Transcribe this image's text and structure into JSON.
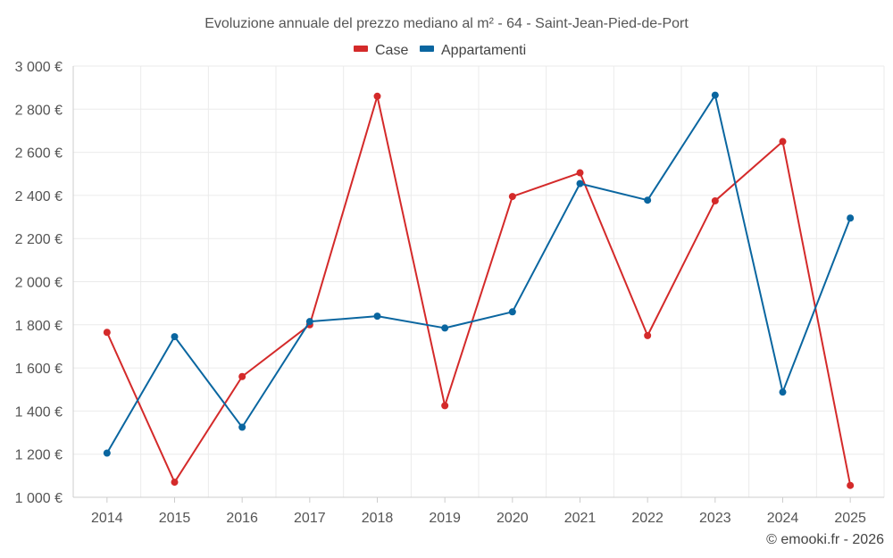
{
  "chart_data": {
    "type": "line",
    "title": "Evoluzione annuale del prezzo mediano al m² - 64 - Saint-Jean-Pied-de-Port",
    "categories": [
      "2014",
      "2015",
      "2016",
      "2017",
      "2018",
      "2019",
      "2020",
      "2021",
      "2022",
      "2023",
      "2024",
      "2025"
    ],
    "series": [
      {
        "name": "Case",
        "color": "#d42a2a",
        "values": [
          1765,
          1070,
          1560,
          1800,
          2860,
          1425,
          2395,
          2505,
          1750,
          2375,
          2650,
          1055
        ]
      },
      {
        "name": "Appartamenti",
        "color": "#0a66a0",
        "values": [
          1205,
          1745,
          1325,
          1815,
          1840,
          1785,
          1860,
          2455,
          2378,
          2865,
          1488,
          2295
        ]
      }
    ],
    "ylim": [
      1000,
      3000
    ],
    "yticks": [
      1000,
      1200,
      1400,
      1600,
      1800,
      2000,
      2200,
      2400,
      2600,
      2800,
      3000
    ],
    "ytick_labels": [
      "1 000 €",
      "1 200 €",
      "1 400 €",
      "1 600 €",
      "1 800 €",
      "2 000 €",
      "2 200 €",
      "2 400 €",
      "2 600 €",
      "2 800 €",
      "3 000 €"
    ],
    "xlabel": "",
    "ylabel": "",
    "legend": "top-center",
    "grid": true
  },
  "credit": "© emooki.fr - 2026"
}
